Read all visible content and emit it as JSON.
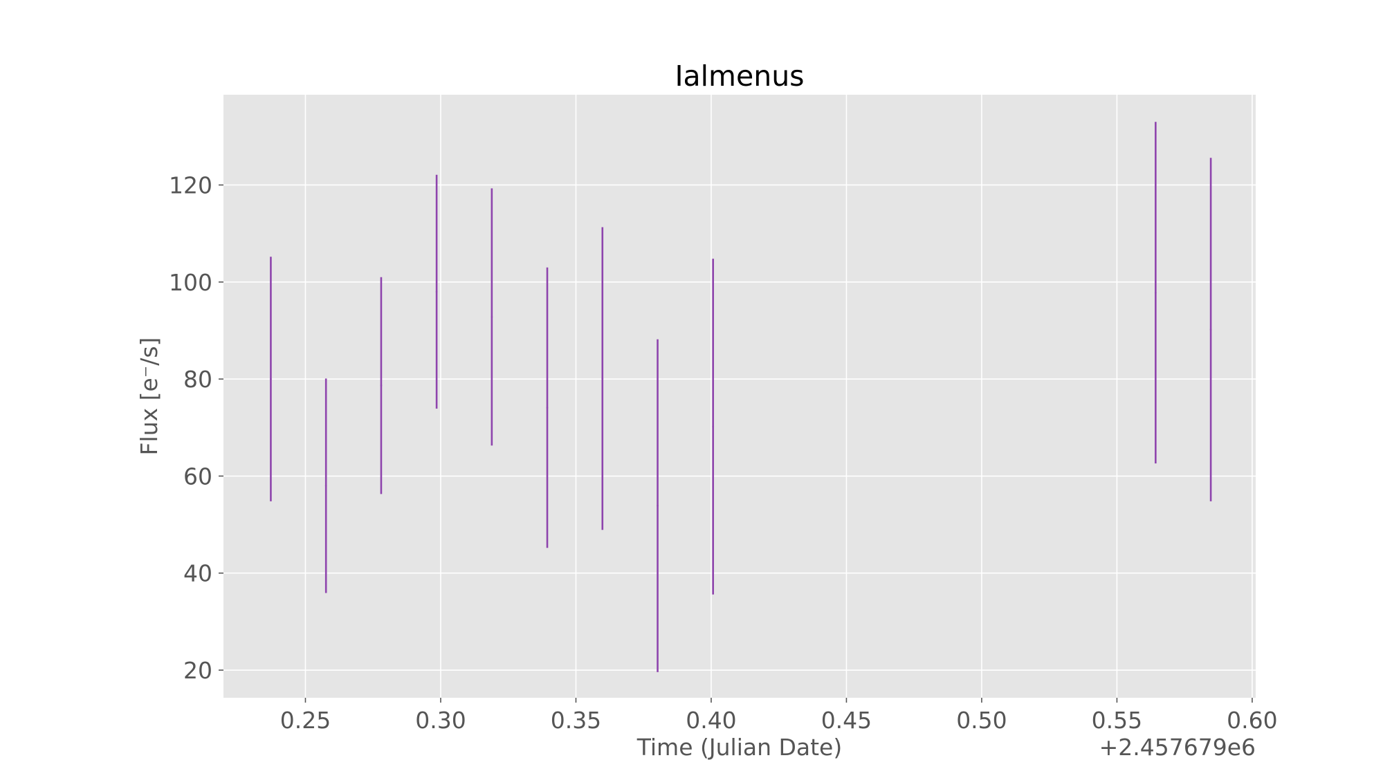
{
  "chart_data": {
    "type": "scatter",
    "title": "Ialmenus",
    "xlabel": "Time (Julian Date)",
    "ylabel": "Flux [e⁻/s]",
    "x_offset_label": "+2.457679e6",
    "xlim": [
      0.2197,
      0.6013
    ],
    "ylim": [
      14.3,
      138.6
    ],
    "xticks": [
      0.25,
      0.3,
      0.35,
      0.4,
      0.45,
      0.5,
      0.55,
      0.6
    ],
    "xtick_labels": [
      "0.25",
      "0.30",
      "0.35",
      "0.40",
      "0.45",
      "0.50",
      "0.55",
      "0.60"
    ],
    "yticks": [
      20,
      40,
      60,
      80,
      100,
      120
    ],
    "ytick_labels": [
      "20",
      "40",
      "60",
      "80",
      "100",
      "120"
    ],
    "grid": true,
    "series": [
      {
        "color": "#8e44ad",
        "points": [
          {
            "x": 0.2372,
            "y": 80.0,
            "ylow": 54.8,
            "yhigh": 105.2
          },
          {
            "x": 0.2576,
            "y": 58.0,
            "ylow": 35.9,
            "yhigh": 80.1
          },
          {
            "x": 0.278,
            "y": 78.7,
            "ylow": 56.3,
            "yhigh": 101.0
          },
          {
            "x": 0.2985,
            "y": 98.0,
            "ylow": 73.9,
            "yhigh": 122.1
          },
          {
            "x": 0.3189,
            "y": 92.8,
            "ylow": 66.3,
            "yhigh": 119.3
          },
          {
            "x": 0.3394,
            "y": 74.1,
            "ylow": 45.2,
            "yhigh": 103.0
          },
          {
            "x": 0.3598,
            "y": 80.1,
            "ylow": 48.9,
            "yhigh": 111.3
          },
          {
            "x": 0.3802,
            "y": 53.9,
            "ylow": 19.6,
            "yhigh": 88.2
          },
          {
            "x": 0.4007,
            "y": 70.2,
            "ylow": 35.6,
            "yhigh": 104.8
          },
          {
            "x": 0.5643,
            "y": 97.8,
            "ylow": 62.6,
            "yhigh": 133.0
          },
          {
            "x": 0.5847,
            "y": 90.2,
            "ylow": 54.8,
            "yhigh": 125.6
          }
        ]
      }
    ]
  }
}
